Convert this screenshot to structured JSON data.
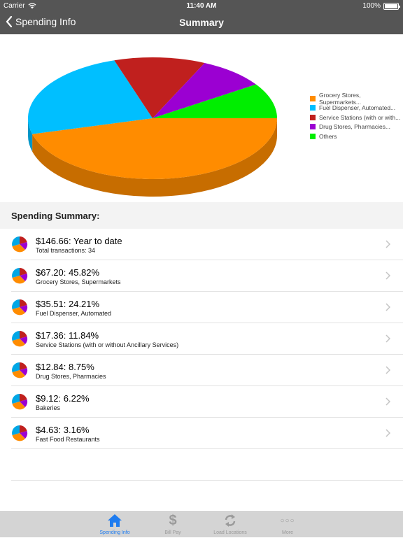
{
  "status_bar": {
    "carrier": "Carrier",
    "time": "11:40 AM",
    "battery": "100%"
  },
  "navbar": {
    "back_label": "Spending Info",
    "title": "Summary"
  },
  "chart_data": {
    "type": "pie",
    "labels": [
      "Grocery Stores, Supermarkets...",
      "Fuel Dispenser, Automated...",
      "Service Stations (with or with...",
      "Drug Stores, Pharmacies...",
      "Others"
    ],
    "values": [
      45.82,
      24.21,
      11.84,
      8.75,
      9.38
    ],
    "colors": [
      "#ff8c00",
      "#00bfff",
      "#c0201e",
      "#9b00d2",
      "#00ee00"
    ],
    "legend_position": "right"
  },
  "section_header": "Spending Summary:",
  "summary_rows": [
    {
      "main": "$146.66: Year to date",
      "sub": "Total transactions: 34"
    },
    {
      "main": "$67.20: 45.82%",
      "sub": "Grocery Stores, Supermarkets"
    },
    {
      "main": "$35.51: 24.21%",
      "sub": "Fuel Dispenser, Automated"
    },
    {
      "main": "$17.36: 11.84%",
      "sub": "Service Stations (with or without Ancillary Services)"
    },
    {
      "main": "$12.84: 8.75%",
      "sub": "Drug Stores, Pharmacies"
    },
    {
      "main": "$9.12: 6.22%",
      "sub": "Bakeries"
    },
    {
      "main": "$4.63: 3.16%",
      "sub": "Fast Food Restaurants"
    }
  ],
  "tabs": [
    {
      "label": "Spending Info",
      "icon": "house-icon",
      "active": true
    },
    {
      "label": "Bill Pay",
      "icon": "dollar-icon",
      "active": false
    },
    {
      "label": "Load Locations",
      "icon": "refresh-icon",
      "active": false
    },
    {
      "label": "More",
      "icon": "more-icon",
      "active": false
    }
  ]
}
